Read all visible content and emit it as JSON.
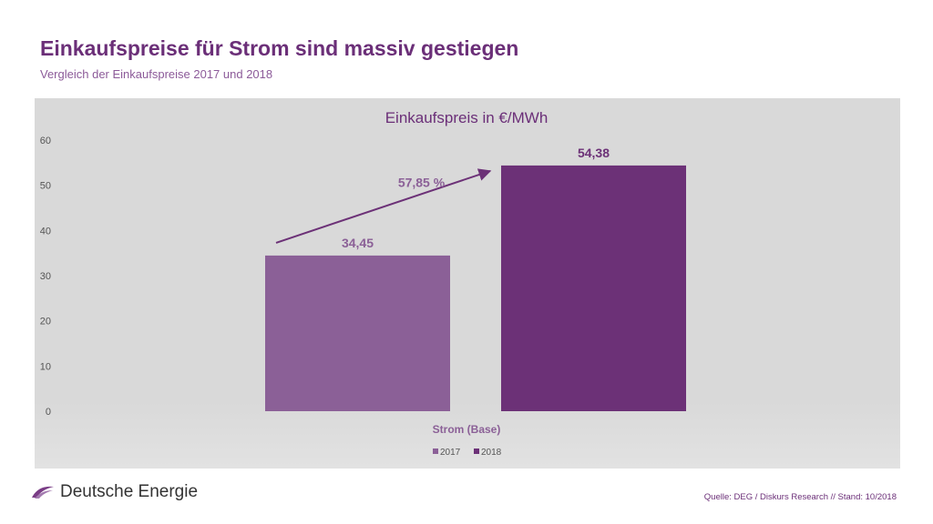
{
  "header": {
    "title": "Einkaufspreise für Strom sind massiv gestiegen",
    "subtitle": "Vergleich der Einkaufspreise 2017 und 2018"
  },
  "chart_data": {
    "type": "bar",
    "title": "Einkaufspreis in €/MWh",
    "categories": [
      "Strom (Base)"
    ],
    "series": [
      {
        "name": "2017",
        "values": [
          34.45
        ],
        "label": "34,45",
        "color": "#8b6097"
      },
      {
        "name": "2018",
        "values": [
          54.38
        ],
        "label": "54,38",
        "color": "#6c3177"
      }
    ],
    "ylim": [
      0,
      60
    ],
    "yticks": [
      "0",
      "10",
      "20",
      "30",
      "40",
      "50",
      "60"
    ],
    "annotation": "57,85 %",
    "grid": false,
    "legend_position": "bottom"
  },
  "footer": {
    "brand": "Deutsche Energie",
    "brand_icon": "swoosh-logo-icon",
    "source": "Quelle: DEG / Diskurs Research // Stand: 10/2018"
  }
}
